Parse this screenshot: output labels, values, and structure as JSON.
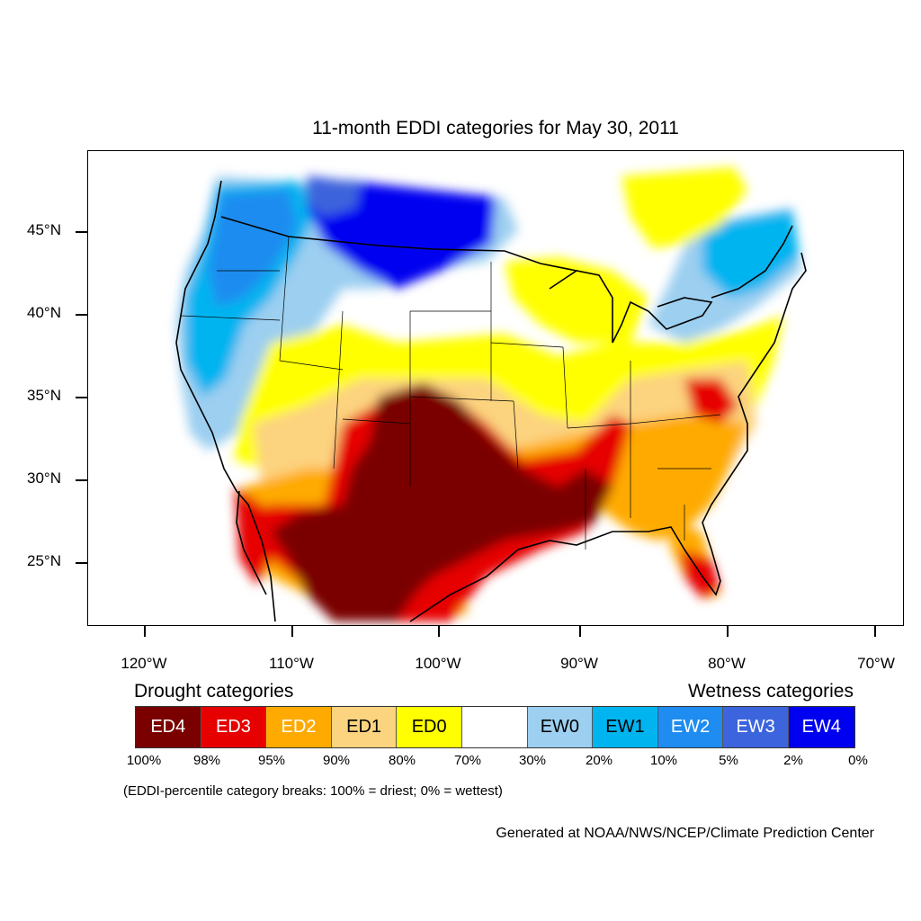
{
  "title": "11-month EDDI categories for May 30, 2011",
  "axes": {
    "lat_labels": [
      "45°N",
      "40°N",
      "35°N",
      "30°N",
      "25°N"
    ],
    "lon_labels": [
      "120°W",
      "110°W",
      "100°W",
      "90°W",
      "80°W",
      "70°W"
    ]
  },
  "legend": {
    "drought_heading": "Drought categories",
    "wetness_heading": "Wetness categories",
    "categories": [
      {
        "label": "ED4",
        "color": "#7a0000",
        "text_color": "#ffffff"
      },
      {
        "label": "ED3",
        "color": "#e60000",
        "text_color": "#ffffff"
      },
      {
        "label": "ED2",
        "color": "#ffaa00",
        "text_color": "#ffffff"
      },
      {
        "label": "ED1",
        "color": "#fcd37f",
        "text_color": "#000000"
      },
      {
        "label": "ED0",
        "color": "#ffff00",
        "text_color": "#000000"
      },
      {
        "label": "",
        "color": "#ffffff",
        "text_color": "#000000"
      },
      {
        "label": "EW0",
        "color": "#9ccff0",
        "text_color": "#000000"
      },
      {
        "label": "EW1",
        "color": "#00b4f0",
        "text_color": "#000000"
      },
      {
        "label": "EW2",
        "color": "#1e8cf0",
        "text_color": "#ffffff"
      },
      {
        "label": "EW3",
        "color": "#3c64dc",
        "text_color": "#ffffff"
      },
      {
        "label": "EW4",
        "color": "#0000f0",
        "text_color": "#ffffff"
      }
    ],
    "percentiles": [
      "100%",
      "98%",
      "95%",
      "90%",
      "80%",
      "70%",
      "30%",
      "20%",
      "10%",
      "5%",
      "2%",
      "0%"
    ]
  },
  "note": "(EDDI-percentile category breaks: 100% = driest; 0% = wettest)",
  "credit": "Generated at NOAA/NWS/NCEP/Climate Prediction Center"
}
